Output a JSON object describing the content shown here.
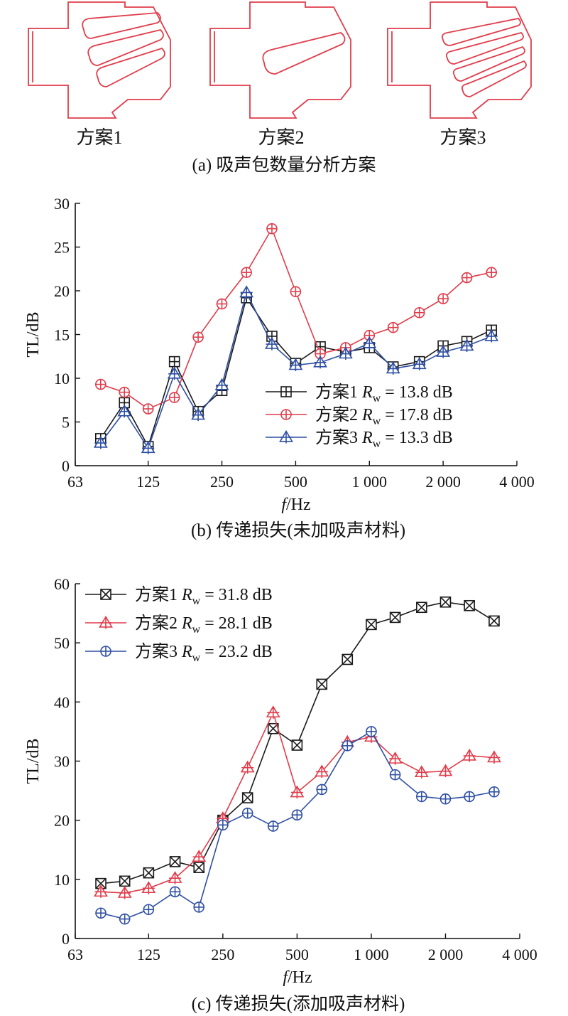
{
  "panel_a": {
    "schemes": [
      {
        "label": "方案1",
        "slots": 3
      },
      {
        "label": "方案2",
        "slots": 1
      },
      {
        "label": "方案3",
        "slots": 4
      }
    ],
    "caption": "(a) 吸声包数量分析方案"
  },
  "panel_b": {
    "caption": "(b) 传递损失(未加吸声材料)"
  },
  "panel_c": {
    "caption": "(c) 传递损失(添加吸声材料)"
  },
  "colors": {
    "black": "#1a1a1a",
    "red": "#e03c4a",
    "blue": "#2e4fa3",
    "part": "#e03c4a"
  },
  "chart_data": [
    {
      "type": "line",
      "panel": "b",
      "xlabel": "f/Hz",
      "ylabel": "TL/dB",
      "x": [
        80,
        100,
        125,
        160,
        200,
        250,
        315,
        400,
        500,
        630,
        800,
        1000,
        1250,
        1600,
        2000,
        2500,
        3150
      ],
      "xticks": [
        63,
        125,
        250,
        500,
        1000,
        2000,
        4000
      ],
      "xtick_labels": [
        "63",
        "125",
        "250",
        "500",
        "1 000",
        "2 000",
        "4 000"
      ],
      "xscale": "log",
      "xlim": [
        63,
        4000
      ],
      "ylim": [
        0,
        30
      ],
      "yticks": [
        0,
        5,
        10,
        15,
        20,
        25,
        30
      ],
      "legend_position": "lower-right",
      "series": [
        {
          "name": "方案1",
          "rw_label": "R",
          "rw_sub": "w",
          "rw_value": " = 13.8 dB",
          "marker": "square-plus",
          "color": "#1a1a1a",
          "values": [
            3.1,
            7.2,
            2.2,
            11.9,
            6.2,
            8.6,
            19.2,
            14.8,
            11.7,
            13.6,
            13.0,
            13.5,
            11.3,
            11.9,
            13.7,
            14.2,
            15.5
          ]
        },
        {
          "name": "方案2",
          "rw_label": "R",
          "rw_sub": "w",
          "rw_value": " = 17.8 dB",
          "marker": "circle-plus",
          "color": "#e03c4a",
          "values": [
            9.3,
            8.4,
            6.5,
            7.8,
            14.7,
            18.5,
            22.1,
            27.1,
            19.9,
            12.8,
            13.5,
            14.9,
            15.8,
            17.5,
            19.1,
            21.5,
            22.1
          ]
        },
        {
          "name": "方案3",
          "rw_label": "R",
          "rw_sub": "w",
          "rw_value": " = 13.3 dB",
          "marker": "triangle-plus",
          "color": "#2e4fa3",
          "values": [
            2.6,
            6.2,
            2.0,
            10.5,
            5.8,
            9.2,
            19.8,
            13.9,
            11.5,
            11.8,
            12.8,
            14.0,
            11.1,
            11.6,
            13.0,
            13.7,
            14.8
          ]
        }
      ]
    },
    {
      "type": "line",
      "panel": "c",
      "xlabel": "f/Hz",
      "ylabel": "TL/dB",
      "x": [
        80,
        100,
        125,
        160,
        200,
        250,
        315,
        400,
        500,
        630,
        800,
        1000,
        1250,
        1600,
        2000,
        2500,
        3150
      ],
      "xticks": [
        63,
        125,
        250,
        500,
        1000,
        2000,
        4000
      ],
      "xtick_labels": [
        "63",
        "125",
        "250",
        "500",
        "1 000",
        "2 000",
        "4 000"
      ],
      "xscale": "log",
      "xlim": [
        63,
        4000
      ],
      "ylim": [
        0,
        60
      ],
      "yticks": [
        0,
        10,
        20,
        30,
        40,
        50,
        60
      ],
      "legend_position": "top-left",
      "series": [
        {
          "name": "方案1",
          "rw_label": "R",
          "rw_sub": "w",
          "rw_value": " = 31.8 dB",
          "marker": "square-x",
          "color": "#1a1a1a",
          "values": [
            9.3,
            9.7,
            11.1,
            13.0,
            12.0,
            20.0,
            23.8,
            35.5,
            32.7,
            43.0,
            47.2,
            53.1,
            54.3,
            56.0,
            56.9,
            56.3,
            53.7
          ]
        },
        {
          "name": "方案2",
          "rw_label": "R",
          "rw_sub": "w",
          "rw_value": " = 28.1 dB",
          "marker": "triangle-plus",
          "color": "#e03c4a",
          "values": [
            7.9,
            7.7,
            8.5,
            10.2,
            13.8,
            20.3,
            28.9,
            38.2,
            24.7,
            28.2,
            33.2,
            34.1,
            30.4,
            28.1,
            28.3,
            30.9,
            30.6
          ]
        },
        {
          "name": "方案3",
          "rw_label": "R",
          "rw_sub": "w",
          "rw_value": " = 23.2 dB",
          "marker": "circle-plus",
          "color": "#2e4fa3",
          "values": [
            4.3,
            3.3,
            4.9,
            7.9,
            5.3,
            19.2,
            21.2,
            19.0,
            20.9,
            25.2,
            32.6,
            35.0,
            27.7,
            24.0,
            23.6,
            24.0,
            24.8
          ]
        }
      ]
    }
  ]
}
